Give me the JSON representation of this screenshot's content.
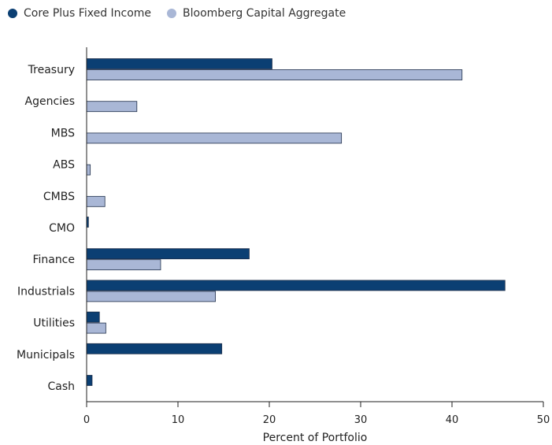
{
  "colors": {
    "series1": "#0b3f73",
    "series2": "#a9b7d6",
    "stroke": "#1f2f4a",
    "axis": "#222222"
  },
  "chart_data": {
    "type": "bar",
    "orientation": "horizontal",
    "categories": [
      "Treasury",
      "Agencies",
      "MBS",
      "ABS",
      "CMBS",
      "CMO",
      "Finance",
      "Industrials",
      "Utilities",
      "Municipals",
      "Cash"
    ],
    "series": [
      {
        "name": "Core Plus Fixed Income",
        "values": [
          20.3,
          0,
          0,
          0,
          0,
          0.2,
          17.8,
          45.8,
          1.4,
          14.8,
          0.6
        ]
      },
      {
        "name": "Bloomberg Capital Aggregate",
        "values": [
          41.1,
          5.5,
          27.9,
          0.4,
          2.0,
          0,
          8.1,
          14.1,
          2.1,
          0,
          0
        ]
      }
    ],
    "xlabel": "Percent of Portfolio",
    "xlim": [
      0,
      50
    ],
    "xticks": [
      0,
      10,
      20,
      30,
      40,
      50
    ],
    "xtick_labels": [
      "0",
      "10",
      "20",
      "30",
      "40",
      "50"
    ],
    "grid": false,
    "legend_position": "top-left"
  }
}
